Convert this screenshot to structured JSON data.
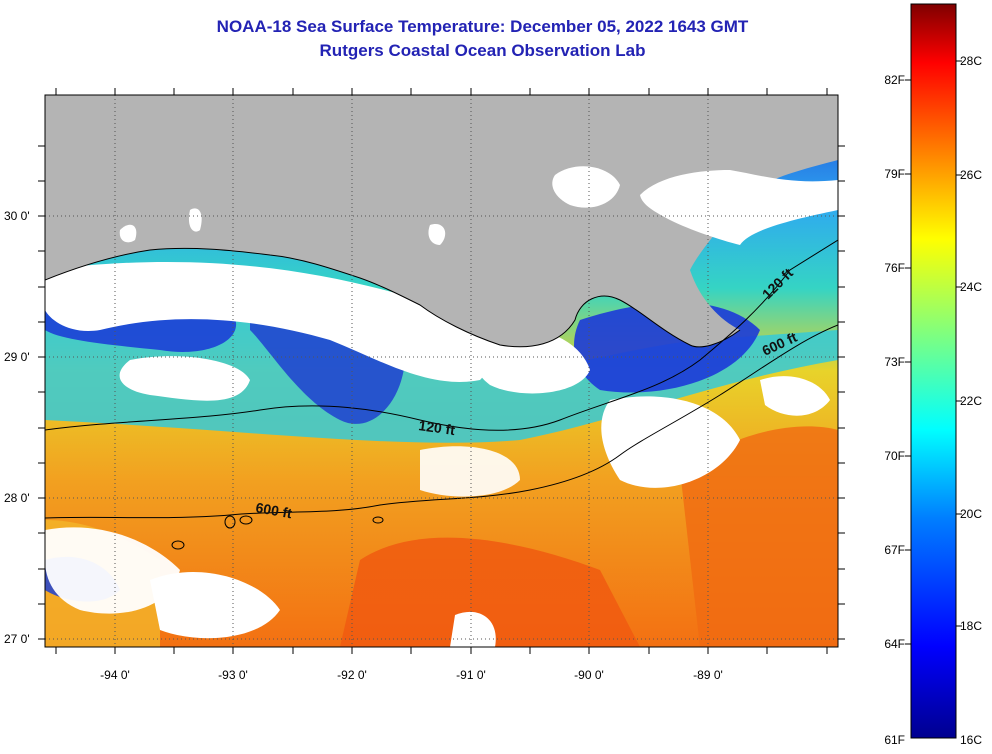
{
  "title": "NOAA-18 Sea Surface Temperature:  December 05, 2022 1643 GMT",
  "subtitle": "Rutgers Coastal Ocean Observation Lab",
  "lat_labels": [
    "30 0'",
    "29 0'",
    "28 0'",
    "27 0'"
  ],
  "lon_labels": [
    "-94 0'",
    "-93 0'",
    "-92 0'",
    "-91 0'",
    "-90 0'",
    "-89 0'"
  ],
  "contour_labels": {
    "c120_left": "120 ft",
    "c120_right": "120 ft",
    "c600_left": "600 ft",
    "c600_right": "600 ft"
  },
  "colorbar": {
    "fahrenheit": [
      "82F",
      "79F",
      "76F",
      "73F",
      "70F",
      "67F",
      "64F",
      "61F"
    ],
    "celsius": [
      "28C",
      "26C",
      "24C",
      "22C",
      "20C",
      "18C",
      "16C"
    ],
    "colors": [
      "#00008f",
      "#0000ff",
      "#007fff",
      "#00ffff",
      "#7fff7f",
      "#ffff00",
      "#ff7f00",
      "#ff0000",
      "#7f0000"
    ]
  },
  "map_colors": {
    "land": "#b4b4b4",
    "cloud": "#ffffff",
    "cold": "#1c3fd6",
    "cool": "#2fa9f0",
    "mid": "#35d4c4",
    "mild": "#b8e85a",
    "warm": "#f2b52a",
    "hot": "#f37a12"
  }
}
